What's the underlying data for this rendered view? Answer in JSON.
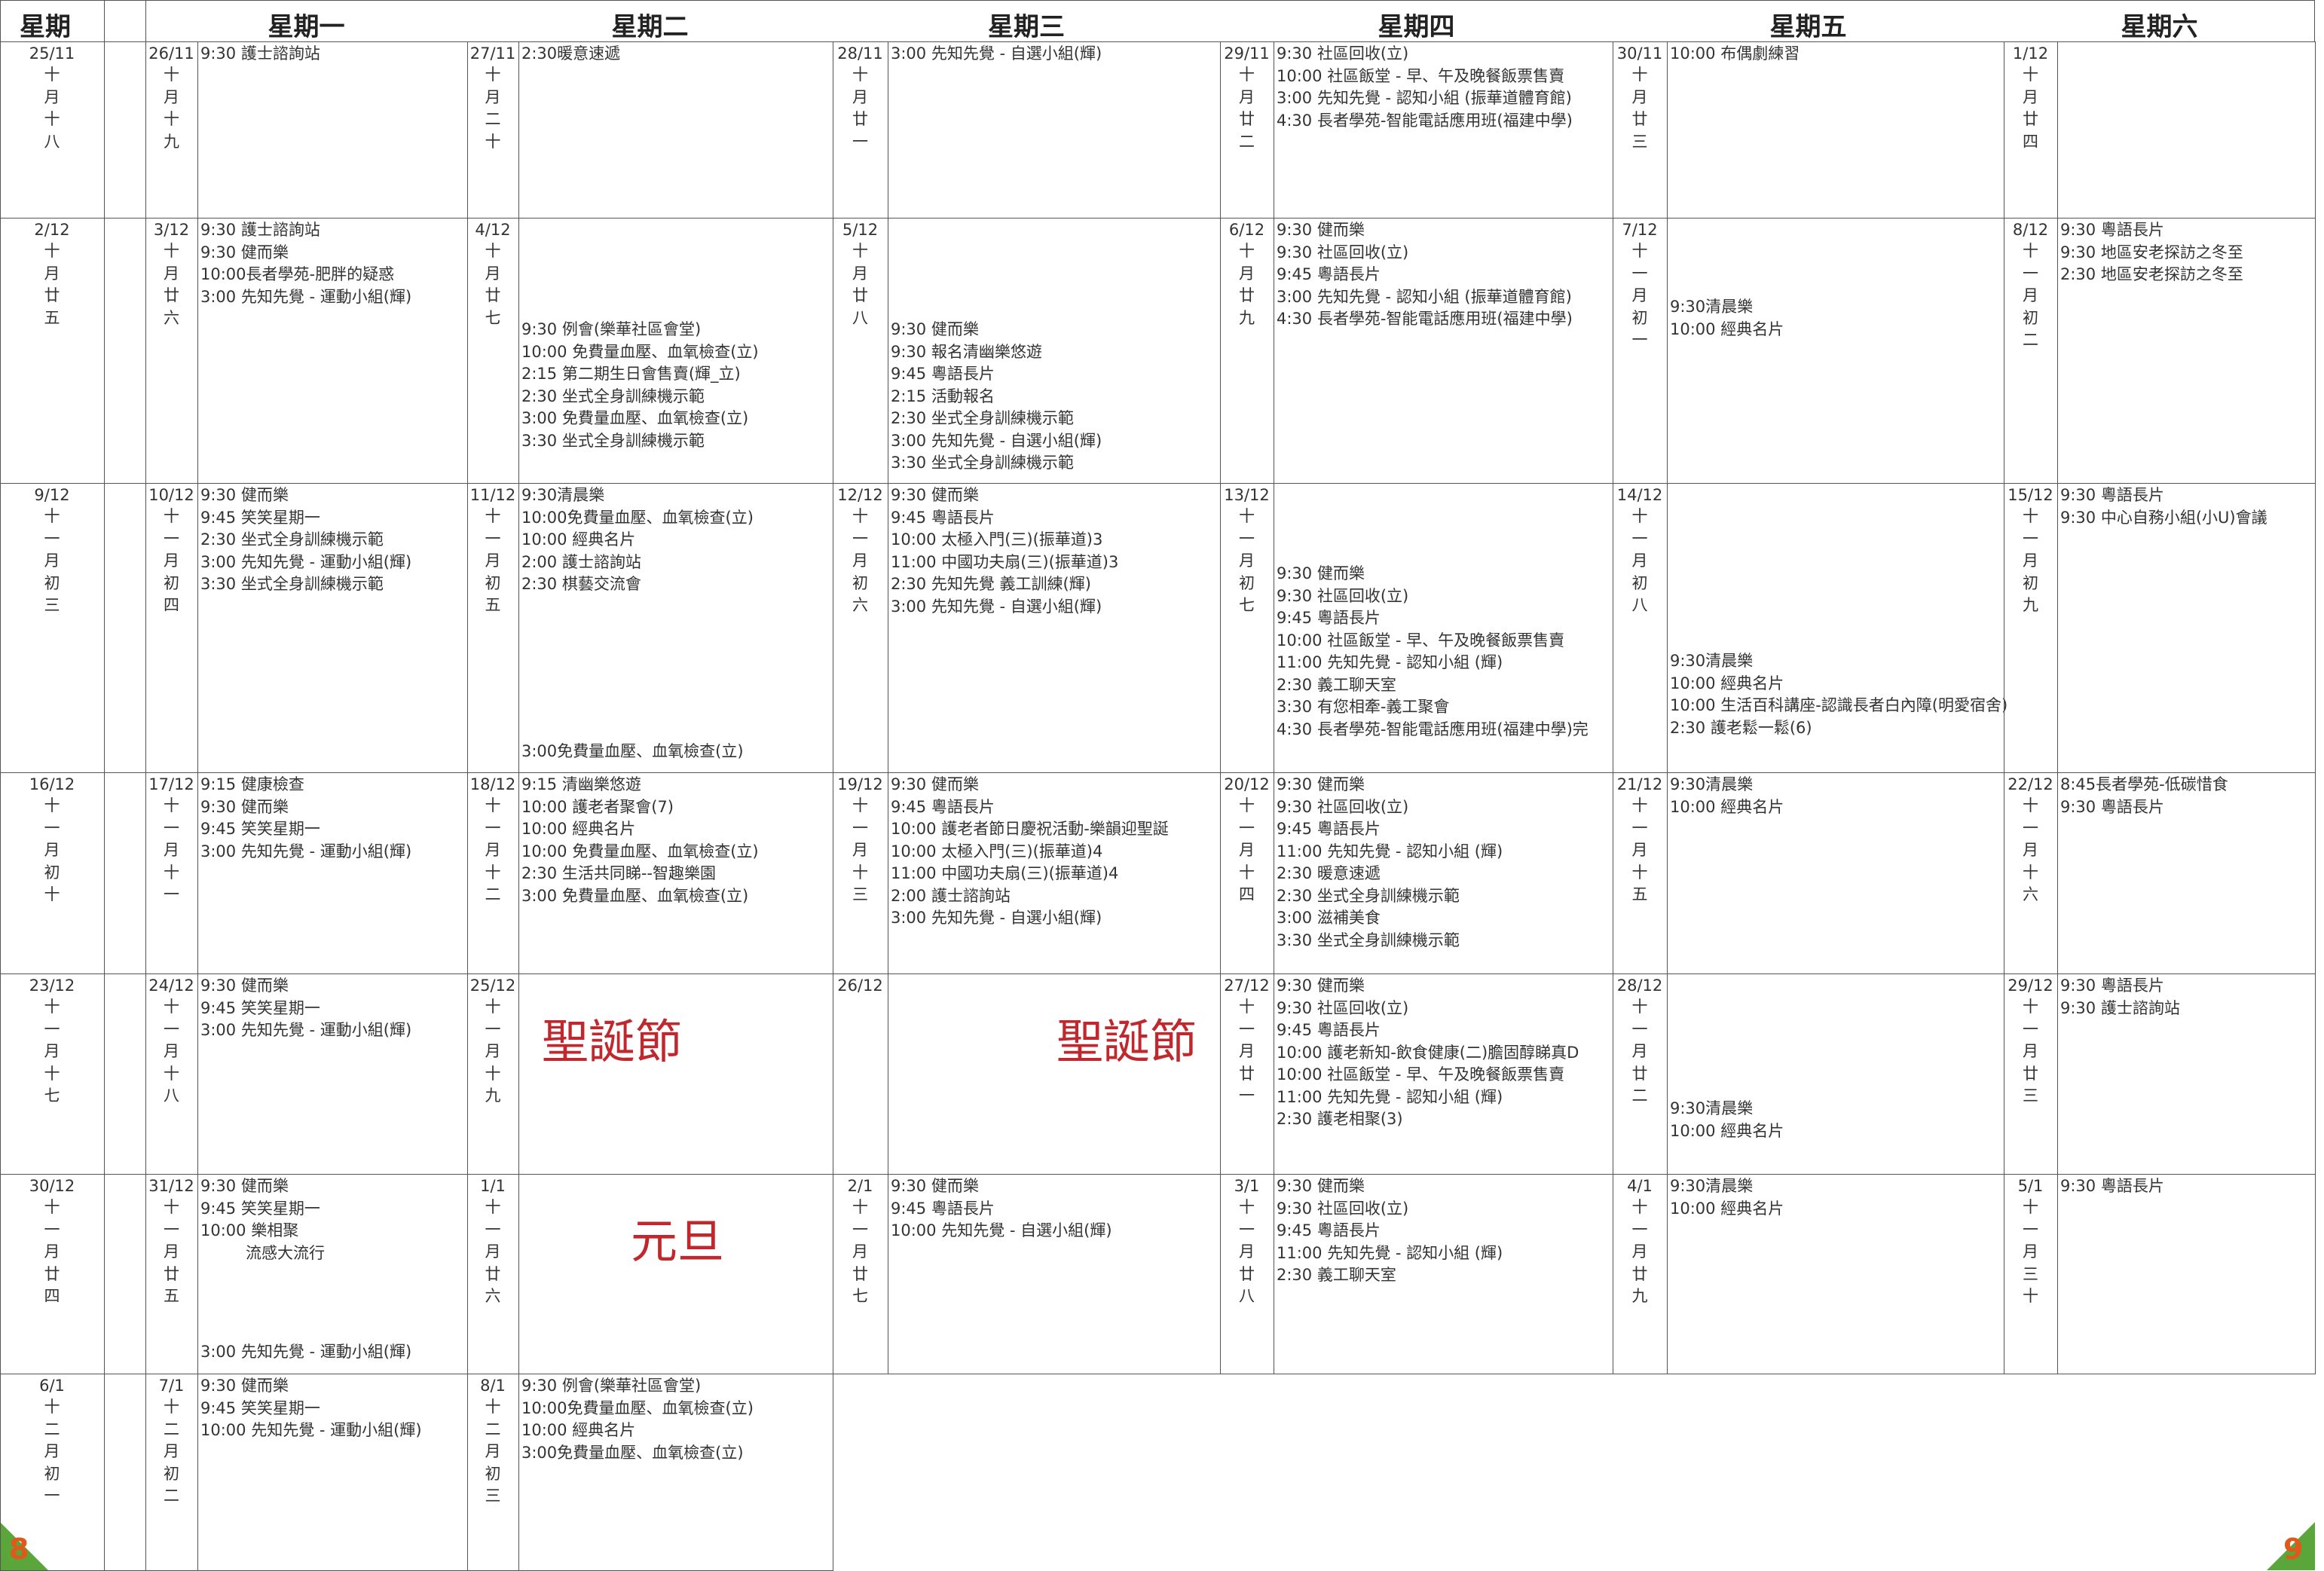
{
  "header": [
    "星期",
    "星期一",
    "星期二",
    "星期三",
    "星期四",
    "星期五",
    "星期六"
  ],
  "weeks": [
    {
      "days": [
        {
          "date": "25/11",
          "lunar": "十月十八"
        },
        {
          "date": "26/11",
          "lunar": "十月十九",
          "events": [
            "9:30 護士諮詢站"
          ]
        },
        {
          "date": "27/11",
          "lunar": "十月二十",
          "events": [
            "2:30暖意速遞"
          ]
        },
        {
          "date": "28/11",
          "lunar": "十月廿一",
          "events": [
            "3:00 先知先覺 - 自選小組(輝)"
          ]
        },
        {
          "date": "29/11",
          "lunar": "十月廿二",
          "events": [
            "9:30 社區回收(立)",
            "10:00 社區飯堂 - 早、午及晚餐飯票售賣",
            "3:00 先知先覺 - 認知小組 (振華道體育館)",
            "4:30 長者學苑-智能電話應用班(福建中學)"
          ]
        },
        {
          "date": "30/11",
          "lunar": "十月廿三",
          "events": [
            "10:00 布偶劇練習"
          ]
        },
        {
          "date": "1/12",
          "lunar": "十月廿四"
        }
      ]
    },
    {
      "days": [
        {
          "date": "2/12",
          "lunar": "十月廿五"
        },
        {
          "date": "3/12",
          "lunar": "十月廿六",
          "events": [
            "9:30 護士諮詢站",
            "9:30 健而樂",
            "10:00長者學苑-肥胖的疑惑",
            "3:00 先知先覺 - 運動小組(輝)"
          ]
        },
        {
          "date": "4/12",
          "lunar": "十月廿七",
          "events": [
            "9:30 例會(樂華社區會堂)",
            "10:00 免費量血壓、血氧檢查(立)",
            "2:15 第二期生日會售賣(輝_立)",
            "2:30 坐式全身訓練機示範",
            "3:00 免費量血壓、血氧檢查(立)",
            "3:30 坐式全身訓練機示範"
          ]
        },
        {
          "date": "5/12",
          "lunar": "十月廿八",
          "events": [
            "9:30 健而樂",
            "9:30 報名清幽樂悠遊",
            "9:45 粵語長片",
            "2:15 活動報名",
            "2:30 坐式全身訓練機示範",
            "3:00 先知先覺 - 自選小組(輝)",
            "3:30 坐式全身訓練機示範"
          ]
        },
        {
          "date": "6/12",
          "lunar": "十月廿九",
          "events": [
            "9:30 健而樂",
            "9:30 社區回收(立)",
            "9:45 粵語長片",
            "3:00 先知先覺 - 認知小組 (振華道體育館)",
            "4:30 長者學苑-智能電話應用班(福建中學)"
          ]
        },
        {
          "date": "7/12",
          "lunar": "十一月初一",
          "events": [
            "9:30清晨樂",
            "10:00 經典名片"
          ]
        },
        {
          "date": "8/12",
          "lunar": "十一月初二",
          "events": [
            "9:30 粵語長片",
            "9:30 地區安老探訪之冬至",
            "2:30 地區安老探訪之冬至"
          ]
        }
      ]
    },
    {
      "days": [
        {
          "date": "9/12",
          "lunar": "十一月初三"
        },
        {
          "date": "10/12",
          "lunar": "十一月初四",
          "events": [
            "9:30 健而樂",
            "9:45 笑笑星期一",
            "2:30 坐式全身訓練機示範",
            "3:00 先知先覺 - 運動小組(輝)",
            "3:30 坐式全身訓練機示範"
          ]
        },
        {
          "date": "11/12",
          "lunar": "十一月初五",
          "events": [
            "9:30清晨樂",
            "10:00免費量血壓、血氧檢查(立)",
            "10:00 經典名片",
            "2:00 護士諮詢站",
            "2:30 棋藝交流會",
            "3:00免費量血壓、血氧檢查(立)"
          ]
        },
        {
          "date": "12/12",
          "lunar": "十一月初六",
          "events": [
            "9:30 健而樂",
            "9:45 粵語長片",
            "10:00 太極入門(三)(振華道)3",
            "11:00 中國功夫扇(三)(振華道)3",
            "2:30 先知先覺 義工訓練(輝)",
            "3:00 先知先覺 - 自選小組(輝)"
          ]
        },
        {
          "date": "13/12",
          "lunar": "十一月初七",
          "events": [
            "9:30 健而樂",
            "9:30 社區回收(立)",
            "9:45 粵語長片",
            "10:00 社區飯堂 - 早、午及晚餐飯票售賣",
            "11:00 先知先覺 - 認知小組 (輝)",
            "2:30 義工聊天室",
            "3:30 有您相牽-義工聚會",
            "4:30 長者學苑-智能電話應用班(福建中學)完"
          ]
        },
        {
          "date": "14/12",
          "lunar": "十一月初八",
          "events": [
            "9:30清晨樂",
            "10:00 經典名片",
            "10:00 生活百科講座-認識長者白內障(明愛宿舍)",
            "2:30 護老鬆一鬆(6)"
          ]
        },
        {
          "date": "15/12",
          "lunar": "十一月初九",
          "events": [
            "9:30 粵語長片",
            "9:30 中心自務小組(小U)會議"
          ]
        }
      ]
    },
    {
      "days": [
        {
          "date": "16/12",
          "lunar": "十一月初十"
        },
        {
          "date": "17/12",
          "lunar": "十一月十一",
          "events": [
            "9:15 健康檢查",
            "9:30 健而樂",
            "9:45 笑笑星期一",
            "3:00 先知先覺 - 運動小組(輝)"
          ]
        },
        {
          "date": "18/12",
          "lunar": "十一月十二",
          "events": [
            "9:15 清幽樂悠遊",
            "10:00 護老者聚會(7)",
            "10:00 經典名片",
            "10:00 免費量血壓、血氧檢查(立)",
            "2:30 生活共同睇--智趣樂園",
            "3:00 免費量血壓、血氧檢查(立)"
          ]
        },
        {
          "date": "19/12",
          "lunar": "十一月十三",
          "events": [
            "9:30 健而樂",
            "9:45 粵語長片",
            "10:00 護老者節日慶祝活動-樂韻迎聖誕",
            "10:00 太極入門(三)(振華道)4",
            "11:00 中國功夫扇(三)(振華道)4",
            "2:00 護士諮詢站",
            "3:00 先知先覺 - 自選小組(輝)"
          ]
        },
        {
          "date": "20/12",
          "lunar": "十一月十四",
          "events": [
            "9:30 健而樂",
            "9:30 社區回收(立)",
            "9:45 粵語長片",
            "11:00 先知先覺 - 認知小組 (輝)",
            "2:30 暖意速遞",
            "2:30 坐式全身訓練機示範",
            "3:00 滋補美食",
            "3:30 坐式全身訓練機示範"
          ]
        },
        {
          "date": "21/12",
          "lunar": "十一月十五",
          "events": [
            "9:30清晨樂",
            "10:00 經典名片"
          ]
        },
        {
          "date": "22/12",
          "lunar": "十一月十六",
          "events": [
            "8:45長者學苑-低碳惜食",
            "9:30 粵語長片"
          ]
        }
      ]
    },
    {
      "days": [
        {
          "date": "23/12",
          "lunar": "十一月十七"
        },
        {
          "date": "24/12",
          "lunar": "十一月十八",
          "events": [
            "9:30 健而樂",
            "9:45 笑笑星期一",
            "3:00 先知先覺 - 運動小組(輝)"
          ]
        },
        {
          "date": "25/12",
          "lunar": "十一月十九"
        },
        {
          "date": "26/12"
        },
        {
          "date": "27/12",
          "lunar": "十一月廿一",
          "events": [
            "9:30 健而樂",
            "9:30 社區回收(立)",
            "9:45 粵語長片",
            "10:00 護老新知-飲食健康(二)膽固醇睇真D",
            "10:00 社區飯堂 - 早、午及晚餐飯票售賣",
            "11:00 先知先覺 - 認知小組 (輝)",
            "2:30 護老相聚(3)"
          ]
        },
        {
          "date": "28/12",
          "lunar": "十一月廿二",
          "events": [
            "9:30清晨樂",
            "10:00 經典名片"
          ]
        },
        {
          "date": "29/12",
          "lunar": "十一月廿三",
          "events": [
            "9:30 粵語長片",
            "9:30 護士諮詢站"
          ]
        }
      ],
      "notes": [
        "聖誕節",
        "聖誕節"
      ]
    },
    {
      "days": [
        {
          "date": "30/12",
          "lunar": "十一月廿四"
        },
        {
          "date": "31/12",
          "lunar": "十一月廿五",
          "events": [
            "9:30 健而樂",
            "9:45 笑笑星期一",
            "10:00 樂相聚",
            "流感大流行",
            "3:00 先知先覺 - 運動小組(輝)"
          ]
        },
        {
          "date": "1/1",
          "lunar": "十一月廿六"
        },
        {
          "date": "2/1",
          "lunar": "十一月廿七",
          "events": [
            "9:30 健而樂",
            "9:45 粵語長片",
            "10:00 先知先覺 - 自選小組(輝)"
          ]
        },
        {
          "date": "3/1",
          "lunar": "十一月廿八",
          "events": [
            "9:30 健而樂",
            "9:30 社區回收(立)",
            "9:45 粵語長片",
            "11:00 先知先覺 - 認知小組 (輝)",
            "2:30 義工聊天室"
          ]
        },
        {
          "date": "4/1",
          "lunar": "十一月廿九",
          "events": [
            "9:30清晨樂",
            "10:00 經典名片"
          ]
        },
        {
          "date": "5/1",
          "lunar": "十一月三十",
          "events": [
            "9:30 粵語長片"
          ]
        }
      ],
      "notes": [
        "元旦"
      ]
    },
    {
      "days": [
        {
          "date": "6/1",
          "lunar": "十二月初一"
        },
        {
          "date": "7/1",
          "lunar": "十二月初二",
          "events": [
            "9:30 健而樂",
            "9:45 笑笑星期一",
            "10:00 先知先覺 - 運動小組(輝)"
          ]
        },
        {
          "date": "8/1",
          "lunar": "十二月初三",
          "events": [
            "9:30 例會(樂華社區會堂)",
            "10:00免費量血壓、血氧檢查(立)",
            "10:00 經典名片",
            "3:00免費量血壓、血氧檢查(立)"
          ]
        }
      ]
    }
  ],
  "page_numbers": [
    "8",
    "9"
  ]
}
